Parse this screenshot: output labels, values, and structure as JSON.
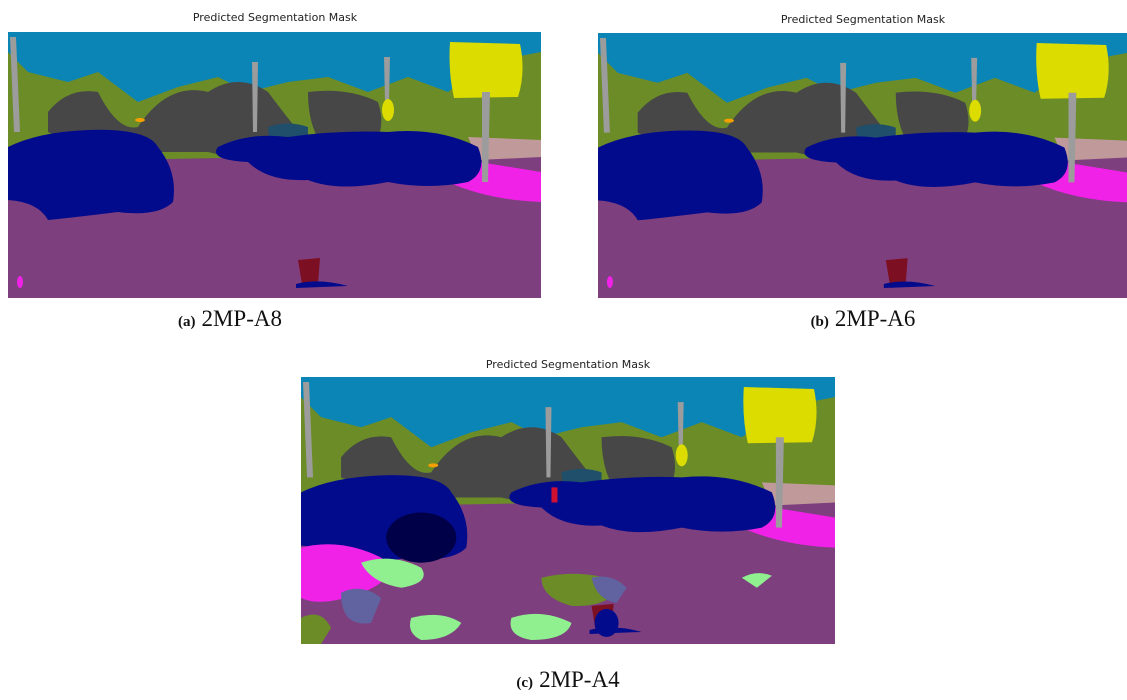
{
  "panels": [
    {
      "title": "Predicted Segmentation Mask",
      "label": "(a)",
      "caption": "2MP-A8"
    },
    {
      "title": "Predicted Segmentation Mask",
      "label": "(b)",
      "caption": "2MP-A6"
    },
    {
      "title": "Predicted Segmentation Mask",
      "label": "(c)",
      "caption": "2MP-A4"
    }
  ]
}
